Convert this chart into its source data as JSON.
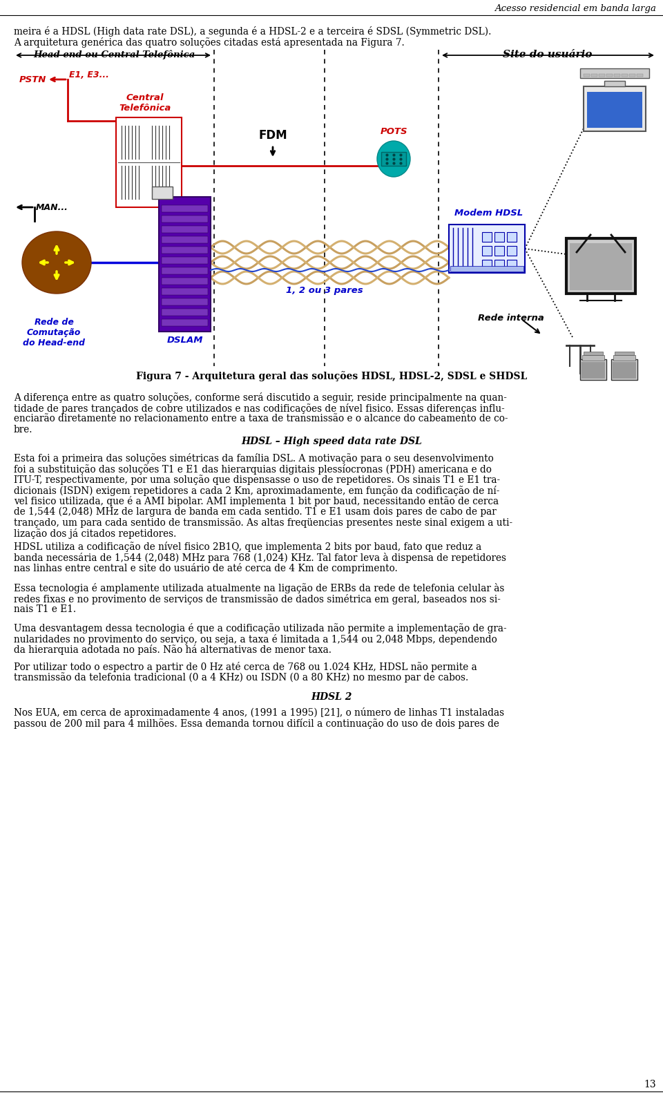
{
  "page_width": 9.6,
  "page_height": 16.01,
  "bg_color": "#ffffff",
  "header_text": "Acesso residencial em banda larga",
  "footer_number": "13",
  "intro_line1": "meira é a HDSL (High data rate DSL), a segunda é a HDSL-2 e a terceira é SDSL (Symmetric DSL).",
  "intro_line2": "A arquitetura genérica das quatro soluções citadas está apresentada na Figura 7.",
  "label_head_end": "Head end ou Central Telefônica",
  "label_site": "Site do usuário",
  "label_pstn": "PSTN",
  "label_e1e3": "E1, E3...",
  "label_central": "Central\nTelefônica",
  "label_pots": "POTS",
  "label_fdm": "FDM",
  "label_man": "MAN...",
  "label_modem": "Modem HDSL",
  "label_1_2_3": "1, 2 ou 3 pares",
  "label_rede_interna": "Rede interna",
  "label_rede_comut": "Rede de\nComutação\ndo Head-end",
  "label_dslam": "DSLAM",
  "fig_caption": "Figura 7 - Arquitetura geral das soluções HDSL, HDSL-2, SDSL e SHDSL",
  "para1": "A diferença entre as quatro soluções, conforme será discutido a seguir, reside principalmente na quan-\ntidade de pares trançados de cobre utilizados e nas codificações de nível fisico. Essas diferenças influ-\nenciarão diretamente no relacionamento entre a taxa de transmissão e o alcance do cabeamento de co-\nbre.",
  "section_heading": "HDSL – High speed data rate DSL",
  "para2": "Esta foi a primeira das soluções simétricas da família DSL. A motivação para o seu desenvolvimento\nfoi a substituição das soluções T1 e E1 das hierarquias digitais plessíocronas (PDH) americana e do\nITU-T, respectivamente, por uma solução que dispensasse o uso de repetidores. Os sinais T1 e E1 tra-\ndicionais (ISDN) exigem repetidores a cada 2 Km, aproximadamente, em função da codificação de ní-\nvel fisico utilizada, que é a AMI bipolar. AMI implementa 1 bit por baud, necessitando então de cerca\nde 1,544 (2,048) MHz de largura de banda em cada sentido. T1 e E1 usam dois pares de cabo de par\ntrançado, um para cada sentido de transmissão. As altas freqüencias presentes neste sinal exigem a uti-\nlização dos já citados repetidores.",
  "para3": "HDSL utiliza a codificação de nível fisico 2B1Q, que implementa 2 bits por baud, fato que reduz a\nbanda necessária de 1,544 (2,048) MHz para 768 (1,024) KHz. Tal fator leva à dispensa de repetidores\nnas linhas entre central e site do usuário de até cerca de 4 Km de comprimento.",
  "para4": "Essa tecnologia é amplamente utilizada atualmente na ligação de ERBs da rede de telefonia celular às\nredes fixas e no provimento de serviços de transmissão de dados simétrica em geral, baseados nos si-\nnais T1 e E1.",
  "para5": "Uma desvantagem dessa tecnologia é que a codificação utilizada não permite a implementação de gra-\nnularidades no provimento do serviço, ou seja, a taxa é limitada a 1,544 ou 2,048 Mbps, dependendo\nda hierarquia adotada no país. Não há alternativas de menor taxa.",
  "para6": "Por utilizar todo o espectro a partir de 0 Hz até cerca de 768 ou 1.024 KHz, HDSL não permite a\ntransmissão da telefonia tradicional (0 a 4 KHz) ou ISDN (0 a 80 KHz) no mesmo par de cabos.",
  "section2_heading": "HDSL 2",
  "para7": "Nos EUA, em cerca de aproximadamente 4 anos, (1991 a 1995) [21], o número de linhas T1 instaladas\npassou de 200 mil para 4 milhões. Essa demanda tornou difícil a continuação do uso de dois pares de"
}
